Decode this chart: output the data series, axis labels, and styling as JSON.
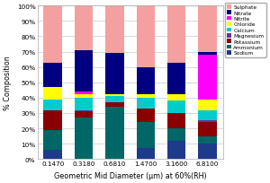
{
  "categories": [
    "0.1470",
    "0.3180",
    "0.6810",
    "1.4700",
    "3.1600",
    "6.8100"
  ],
  "components": [
    "Sodium",
    "Ammonium",
    "Potassium",
    "Magnesium",
    "Calcium",
    "Chloride",
    "Nitrite",
    "Nitrate",
    "Sulphate"
  ],
  "colors": [
    "#1E3A8A",
    "#006666",
    "#8B0000",
    "#663399",
    "#00CCCC",
    "#FFFF00",
    "#FF00FF",
    "#000080",
    "#F4A0A0"
  ],
  "data": {
    "Sodium": [
      6,
      0,
      0,
      7,
      12,
      10
    ],
    "Ammonium": [
      13,
      27,
      34,
      17,
      8,
      5
    ],
    "Potassium": [
      13,
      4,
      3,
      9,
      10,
      9
    ],
    "Magnesium": [
      0,
      1,
      0,
      0,
      0,
      1
    ],
    "Calcium": [
      7,
      8,
      4,
      7,
      8,
      7
    ],
    "Chloride": [
      8,
      2,
      1,
      2,
      4,
      7
    ],
    "Nitrite": [
      0,
      2,
      0,
      0,
      0,
      29
    ],
    "Nitrate": [
      16,
      27,
      27,
      18,
      21,
      2
    ],
    "Sulphate": [
      37,
      29,
      31,
      40,
      37,
      30
    ]
  },
  "ylabel": "% Composition",
  "xlabel": "Geometric Mid Diameter (μm) at 60%(RH)",
  "ylim": [
    0,
    100
  ],
  "ytick_labels": [
    "0%",
    "10%",
    "20%",
    "30%",
    "40%",
    "50%",
    "60%",
    "70%",
    "80%",
    "90%",
    "100%"
  ],
  "background_color": "#ffffff",
  "grid_color": "#c8c8c8",
  "legend_labels": [
    "Sulphate",
    "Nitrate",
    "Nitrite",
    "Chloride",
    "Calcium",
    "Magnesium",
    "Potassium",
    "Ammonium",
    "Sodium"
  ]
}
